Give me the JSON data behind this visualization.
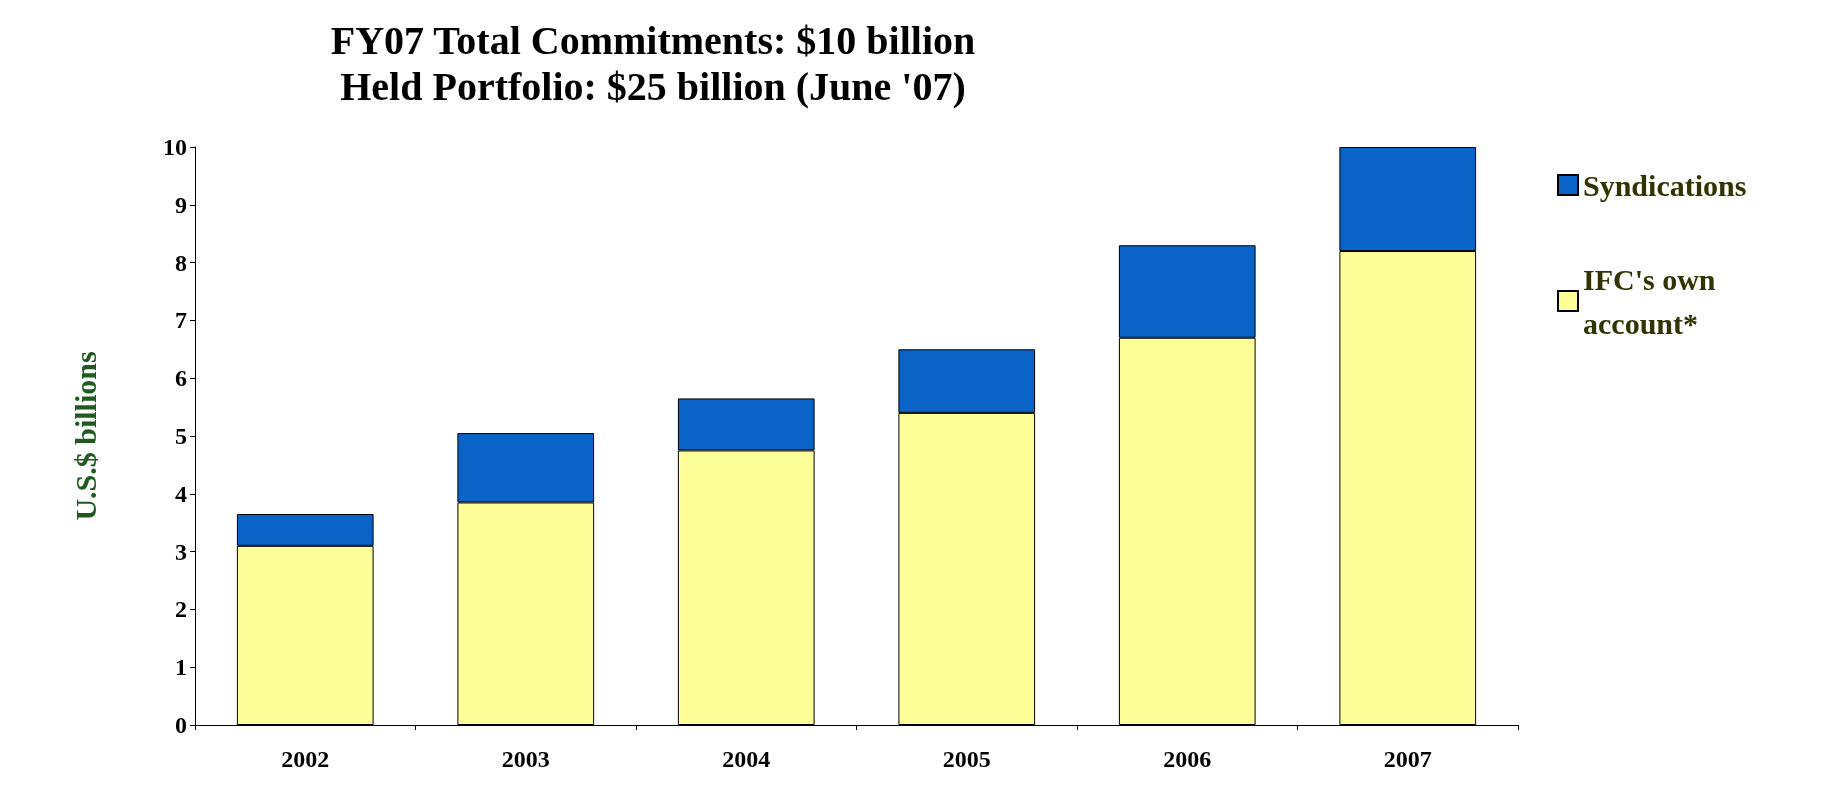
{
  "chart_data": {
    "type": "bar",
    "title": "FY07 Total Commitments: $10 billion\nHeld Portfolio: $25 billion (June '07)",
    "ylabel": "U.S.$ billions",
    "categories": [
      "2002",
      "2003",
      "2004",
      "2005",
      "2006",
      "2007"
    ],
    "stacked": true,
    "series": [
      {
        "name": "IFC's own account*",
        "color": "#ffff99",
        "values": [
          3.1,
          3.85,
          4.75,
          5.4,
          6.7,
          8.2
        ]
      },
      {
        "name": "Syndications",
        "color": "#0a64c8",
        "values": [
          0.55,
          1.2,
          0.9,
          1.1,
          1.6,
          1.8
        ]
      }
    ],
    "ylim": [
      0,
      10
    ],
    "yticks": [
      0,
      1,
      2,
      3,
      4,
      5,
      6,
      7,
      8,
      9,
      10
    ],
    "grid": false,
    "legend": "top right"
  }
}
